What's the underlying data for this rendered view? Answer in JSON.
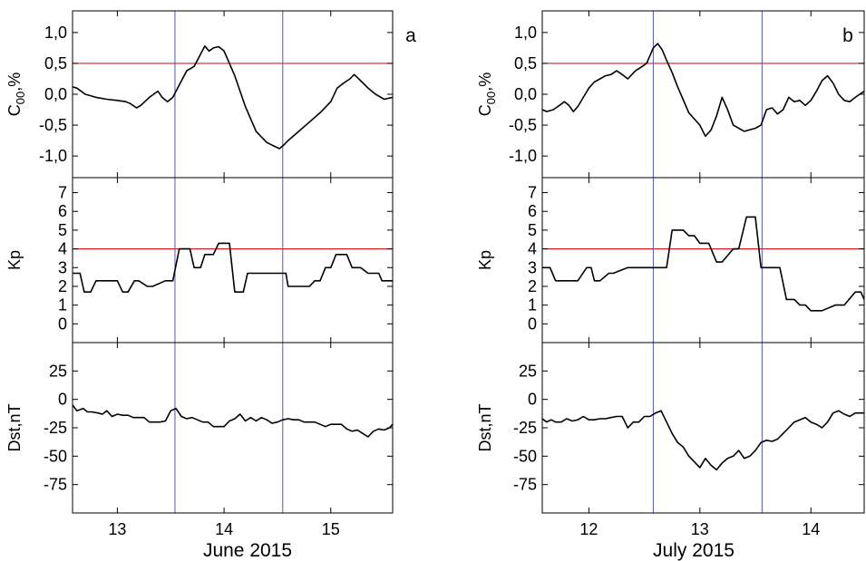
{
  "chart_data": [
    {
      "type": "line",
      "panel_label": "a",
      "xlabel": "June 2015",
      "x_ticks": [
        13,
        14,
        15
      ],
      "x_tick_labels": [
        "13",
        "14",
        "15"
      ],
      "xlim": [
        12.58,
        15.58
      ],
      "event_markers_x": [
        13.54,
        14.55
      ],
      "subplots": [
        {
          "ylabel": "C00,%",
          "ylabel_main": "C",
          "ylabel_sub": "00",
          "ylabel_rest": ",%",
          "ylim": [
            -1.35,
            1.35
          ],
          "y_ticks": [
            -1.0,
            -0.5,
            0.0,
            0.5,
            1.0
          ],
          "y_tick_labels": [
            "-1,0",
            "-0,5",
            "0,0",
            "0,5",
            "1,0"
          ],
          "reference_y": 0.5,
          "x": [
            12.58,
            12.62,
            12.7,
            12.8,
            12.9,
            13.0,
            13.08,
            13.12,
            13.18,
            13.22,
            13.3,
            13.38,
            13.42,
            13.47,
            13.52,
            13.58,
            13.65,
            13.72,
            13.78,
            13.82,
            13.86,
            13.9,
            13.95,
            14.0,
            14.05,
            14.1,
            14.2,
            14.3,
            14.4,
            14.48,
            14.52,
            14.56,
            14.6,
            14.7,
            14.8,
            14.9,
            15.0,
            15.06,
            15.12,
            15.18,
            15.22,
            15.28,
            15.35,
            15.42,
            15.5,
            15.58
          ],
          "y": [
            0.12,
            0.1,
            0.0,
            -0.05,
            -0.08,
            -0.1,
            -0.12,
            -0.15,
            -0.22,
            -0.18,
            -0.05,
            0.05,
            -0.05,
            -0.12,
            -0.05,
            0.15,
            0.38,
            0.45,
            0.65,
            0.78,
            0.7,
            0.75,
            0.77,
            0.7,
            0.5,
            0.3,
            -0.2,
            -0.6,
            -0.78,
            -0.85,
            -0.88,
            -0.82,
            -0.75,
            -0.6,
            -0.45,
            -0.3,
            -0.12,
            0.1,
            0.18,
            0.25,
            0.32,
            0.22,
            0.1,
            0.0,
            -0.08,
            -0.05
          ]
        },
        {
          "ylabel": "Kp",
          "ylim": [
            -1.0,
            7.8
          ],
          "y_ticks": [
            0,
            1,
            2,
            3,
            4,
            5,
            6,
            7
          ],
          "y_tick_labels": [
            "0",
            "1",
            "2",
            "3",
            "4",
            "5",
            "6",
            "7"
          ],
          "reference_y": 4,
          "x": [
            12.58,
            12.65,
            12.69,
            12.75,
            12.8,
            12.95,
            13.0,
            13.05,
            13.1,
            13.16,
            13.2,
            13.28,
            13.33,
            13.45,
            13.52,
            13.58,
            13.6,
            13.68,
            13.72,
            13.78,
            13.82,
            13.9,
            13.95,
            14.0,
            14.05,
            14.1,
            14.13,
            14.18,
            14.22,
            14.25,
            14.32,
            14.55,
            14.58,
            14.6,
            14.75,
            14.8,
            14.85,
            14.9,
            14.95,
            15.0,
            15.05,
            15.15,
            15.2,
            15.28,
            15.35,
            15.45,
            15.48,
            15.58
          ],
          "y": [
            2.7,
            2.7,
            1.7,
            1.7,
            2.3,
            2.3,
            2.3,
            1.7,
            1.7,
            2.3,
            2.3,
            2.0,
            2.0,
            2.3,
            2.3,
            4.0,
            4.0,
            4.0,
            3.0,
            3.0,
            3.7,
            3.7,
            4.3,
            4.3,
            4.3,
            1.7,
            1.7,
            1.7,
            2.7,
            2.7,
            2.7,
            2.7,
            2.7,
            2.0,
            2.0,
            2.0,
            2.3,
            2.3,
            3.0,
            3.0,
            3.7,
            3.7,
            3.0,
            3.0,
            2.7,
            2.7,
            2.3,
            2.3
          ]
        },
        {
          "ylabel": "Dst,nT",
          "ylim": [
            -100,
            50
          ],
          "y_ticks": [
            -75,
            -50,
            -25,
            0,
            25
          ],
          "y_tick_labels": [
            "-75",
            "-50",
            "-25",
            "0",
            "25"
          ],
          "x": [
            12.58,
            12.62,
            12.68,
            12.72,
            12.76,
            12.82,
            12.86,
            12.9,
            12.95,
            13.0,
            13.05,
            13.1,
            13.15,
            13.2,
            13.25,
            13.3,
            13.35,
            13.4,
            13.45,
            13.5,
            13.55,
            13.6,
            13.65,
            13.7,
            13.75,
            13.8,
            13.85,
            13.9,
            13.95,
            14.0,
            14.05,
            14.1,
            14.15,
            14.2,
            14.25,
            14.3,
            14.35,
            14.4,
            14.45,
            14.5,
            14.55,
            14.6,
            14.65,
            14.7,
            14.75,
            14.8,
            14.85,
            14.9,
            14.95,
            15.0,
            15.05,
            15.1,
            15.15,
            15.2,
            15.25,
            15.3,
            15.35,
            15.4,
            15.45,
            15.5,
            15.55,
            15.58
          ],
          "y": [
            -5,
            -10,
            -8,
            -11,
            -11,
            -12,
            -13,
            -10,
            -15,
            -13,
            -14,
            -14,
            -16,
            -16,
            -16,
            -20,
            -20,
            -20,
            -19,
            -10,
            -8,
            -15,
            -17,
            -16,
            -18,
            -20,
            -20,
            -24,
            -24,
            -24,
            -19,
            -17,
            -13,
            -19,
            -16,
            -19,
            -16,
            -18,
            -21,
            -20,
            -18,
            -17,
            -18,
            -18,
            -20,
            -20,
            -20,
            -22,
            -24,
            -22,
            -22,
            -22,
            -26,
            -28,
            -27,
            -30,
            -33,
            -28,
            -26,
            -27,
            -25,
            -22
          ]
        }
      ]
    },
    {
      "type": "line",
      "panel_label": "b",
      "xlabel": "July 2015",
      "x_ticks": [
        12,
        13,
        14
      ],
      "x_tick_labels": [
        "12",
        "13",
        "14"
      ],
      "xlim": [
        11.58,
        14.48
      ],
      "event_markers_x": [
        12.58,
        13.56
      ],
      "subplots": [
        {
          "ylabel": "C00,%",
          "ylabel_main": "C",
          "ylabel_sub": "00",
          "ylabel_rest": ",%",
          "ylim": [
            -1.35,
            1.35
          ],
          "y_ticks": [
            -1.0,
            -0.5,
            0.0,
            0.5,
            1.0
          ],
          "y_tick_labels": [
            "-1,0",
            "-0,5",
            "0,0",
            "0,5",
            "1,0"
          ],
          "reference_y": 0.5,
          "x": [
            11.58,
            11.62,
            11.68,
            11.72,
            11.78,
            11.82,
            11.86,
            11.9,
            11.95,
            12.0,
            12.05,
            12.1,
            12.15,
            12.2,
            12.25,
            12.3,
            12.35,
            12.42,
            12.48,
            12.52,
            12.58,
            12.62,
            12.66,
            12.7,
            12.75,
            12.8,
            12.9,
            13.0,
            13.05,
            13.1,
            13.15,
            13.2,
            13.25,
            13.3,
            13.4,
            13.5,
            13.55,
            13.6,
            13.65,
            13.7,
            13.75,
            13.8,
            13.85,
            13.9,
            13.95,
            14.0,
            14.05,
            14.1,
            14.15,
            14.2,
            14.25,
            14.3,
            14.35,
            14.4,
            14.48
          ],
          "y": [
            -0.25,
            -0.28,
            -0.25,
            -0.2,
            -0.12,
            -0.18,
            -0.28,
            -0.2,
            -0.05,
            0.1,
            0.2,
            0.25,
            0.3,
            0.32,
            0.38,
            0.32,
            0.25,
            0.38,
            0.45,
            0.5,
            0.75,
            0.82,
            0.72,
            0.55,
            0.35,
            0.12,
            -0.3,
            -0.5,
            -0.68,
            -0.58,
            -0.35,
            -0.05,
            -0.25,
            -0.5,
            -0.6,
            -0.55,
            -0.5,
            -0.25,
            -0.22,
            -0.32,
            -0.25,
            -0.05,
            -0.12,
            -0.1,
            -0.18,
            -0.1,
            0.05,
            0.22,
            0.3,
            0.18,
            0.0,
            -0.1,
            -0.12,
            -0.05,
            0.05
          ]
        },
        {
          "ylabel": "Kp",
          "ylim": [
            -1.0,
            7.8
          ],
          "y_ticks": [
            0,
            1,
            2,
            3,
            4,
            5,
            6,
            7
          ],
          "y_tick_labels": [
            "0",
            "1",
            "2",
            "3",
            "4",
            "5",
            "6",
            "7"
          ],
          "reference_y": 4,
          "x": [
            11.58,
            11.65,
            11.7,
            11.85,
            11.9,
            11.98,
            12.02,
            12.05,
            12.1,
            12.18,
            12.22,
            12.35,
            12.4,
            12.58,
            12.7,
            12.75,
            12.85,
            12.9,
            12.95,
            13.0,
            13.05,
            13.08,
            13.15,
            13.2,
            13.3,
            13.35,
            13.42,
            13.45,
            13.5,
            13.55,
            13.6,
            13.72,
            13.78,
            13.85,
            13.9,
            13.95,
            14.0,
            14.1,
            14.22,
            14.25,
            14.3,
            14.4,
            14.45,
            14.48
          ],
          "y": [
            3.0,
            3.0,
            2.3,
            2.3,
            2.3,
            3.0,
            3.0,
            2.3,
            2.3,
            2.7,
            2.7,
            3.0,
            3.0,
            3.0,
            3.0,
            5.0,
            5.0,
            4.7,
            4.7,
            4.3,
            4.3,
            4.3,
            3.3,
            3.3,
            4.0,
            4.0,
            5.7,
            5.7,
            5.7,
            3.0,
            3.0,
            3.0,
            1.3,
            1.3,
            1.0,
            1.0,
            0.7,
            0.7,
            1.0,
            1.0,
            1.0,
            1.7,
            1.7,
            1.3
          ]
        },
        {
          "ylabel": "Dst,nT",
          "ylim": [
            -100,
            50
          ],
          "y_ticks": [
            -75,
            -50,
            -25,
            0,
            25
          ],
          "y_tick_labels": [
            "-75",
            "-50",
            "-25",
            "0",
            "25"
          ],
          "x": [
            11.58,
            11.62,
            11.66,
            11.7,
            11.75,
            11.8,
            11.85,
            11.9,
            11.95,
            12.0,
            12.05,
            12.1,
            12.15,
            12.2,
            12.25,
            12.3,
            12.35,
            12.4,
            12.45,
            12.5,
            12.55,
            12.6,
            12.65,
            12.7,
            12.75,
            12.8,
            12.85,
            12.9,
            12.95,
            13.0,
            13.05,
            13.1,
            13.15,
            13.2,
            13.25,
            13.3,
            13.35,
            13.4,
            13.45,
            13.5,
            13.55,
            13.6,
            13.65,
            13.7,
            13.75,
            13.8,
            13.85,
            13.9,
            13.95,
            14.0,
            14.05,
            14.1,
            14.15,
            14.2,
            14.25,
            14.3,
            14.35,
            14.4,
            14.45,
            14.48
          ],
          "y": [
            -17,
            -20,
            -18,
            -20,
            -20,
            -17,
            -19,
            -18,
            -15,
            -18,
            -18,
            -17,
            -17,
            -16,
            -15,
            -15,
            -25,
            -20,
            -20,
            -15,
            -15,
            -12,
            -10,
            -20,
            -30,
            -38,
            -42,
            -50,
            -55,
            -60,
            -52,
            -58,
            -62,
            -56,
            -52,
            -50,
            -45,
            -52,
            -50,
            -45,
            -38,
            -36,
            -37,
            -35,
            -30,
            -25,
            -20,
            -18,
            -16,
            -20,
            -22,
            -25,
            -20,
            -12,
            -10,
            -13,
            -15,
            -12,
            -12,
            -12
          ]
        }
      ]
    }
  ]
}
